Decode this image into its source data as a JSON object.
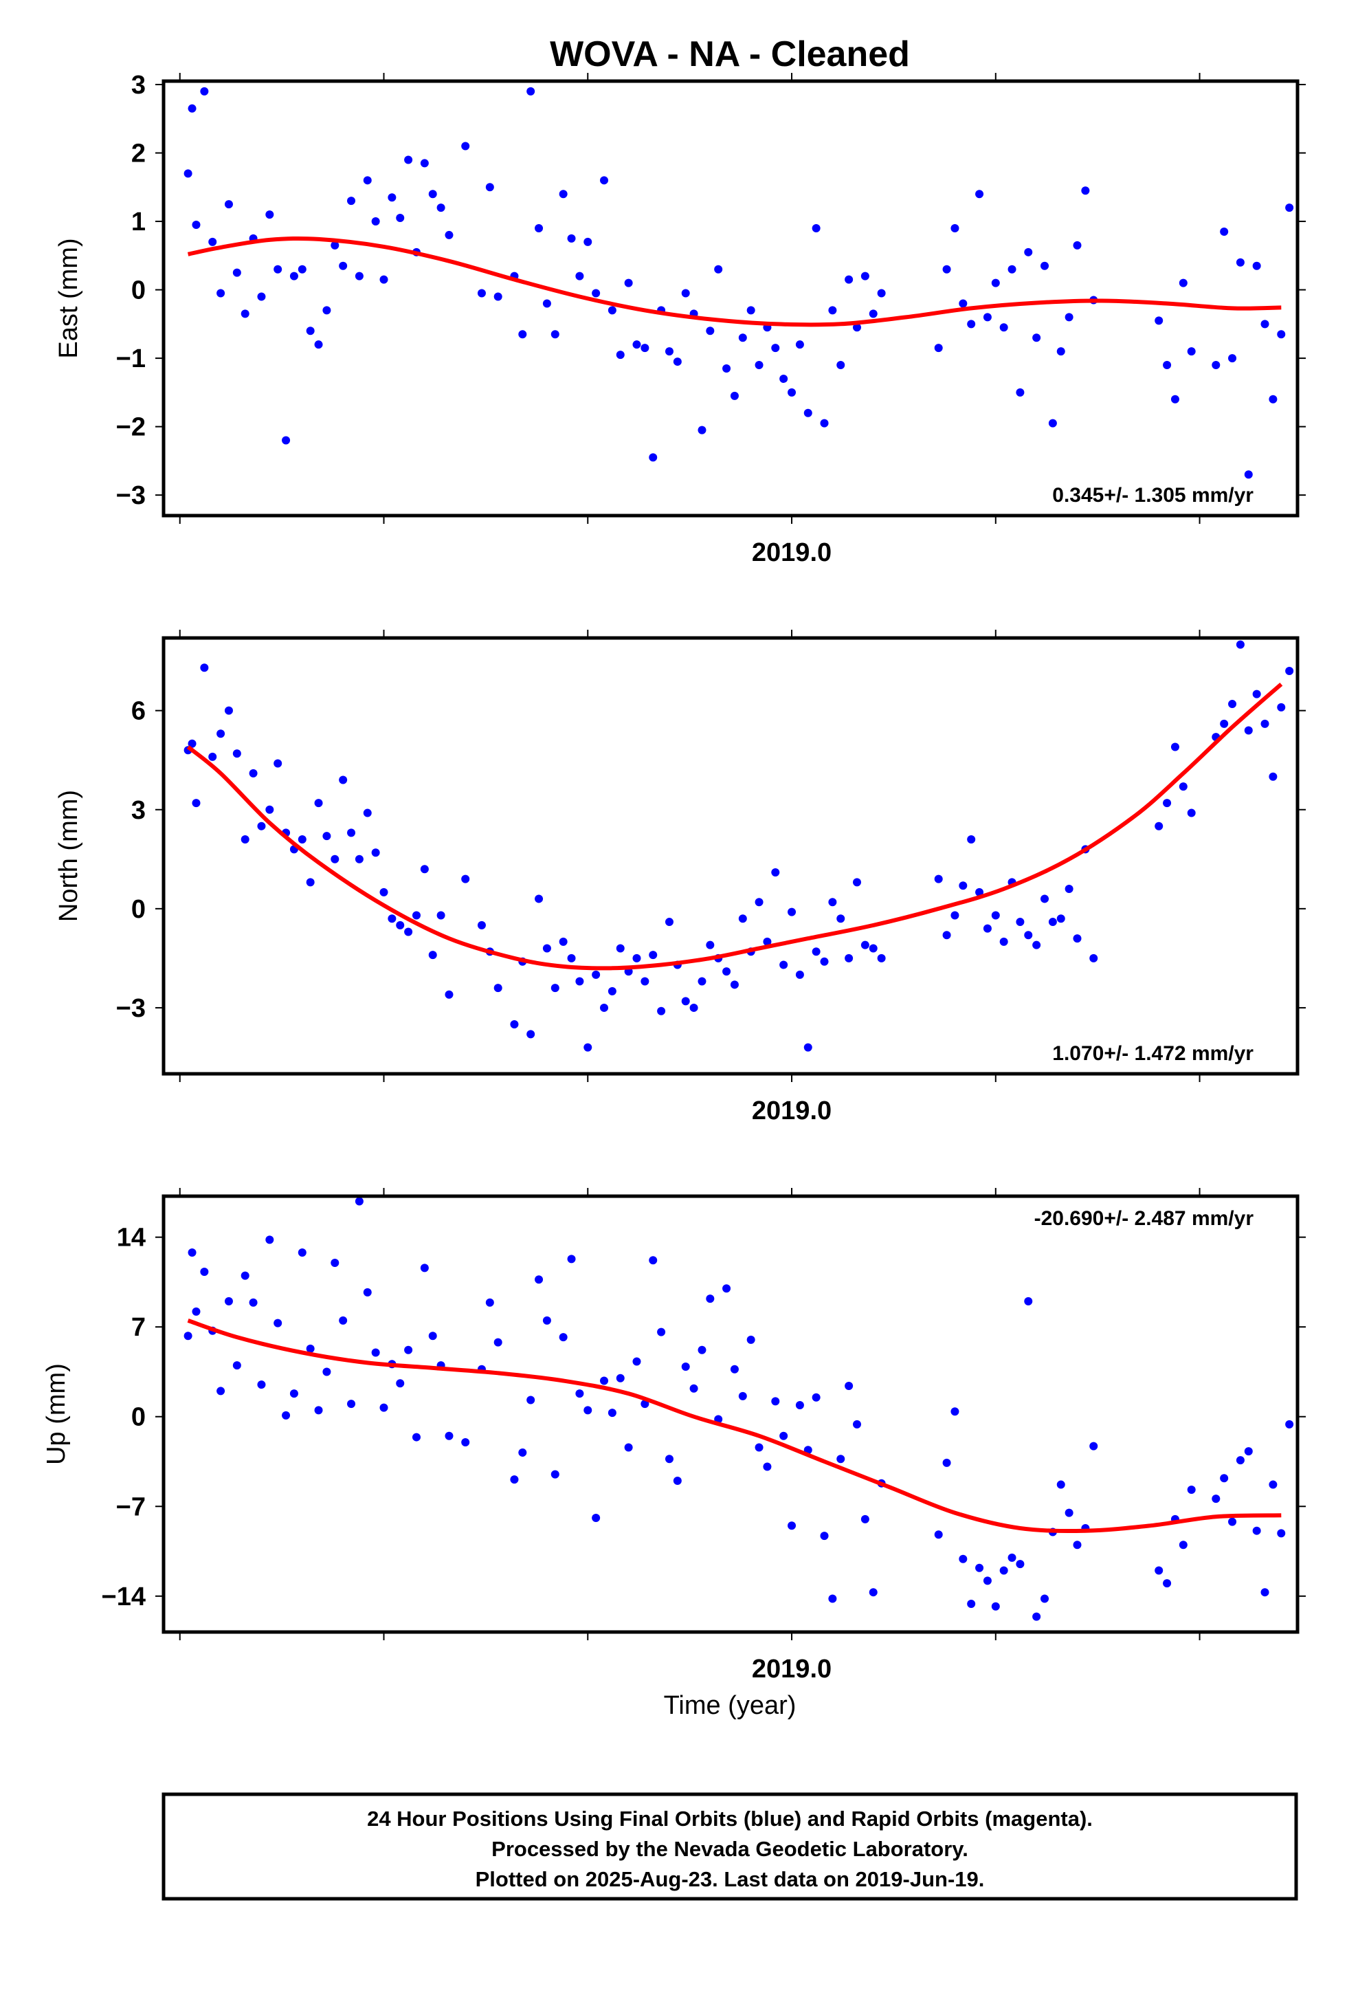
{
  "figure": {
    "title": "WOVA  - NA - Cleaned",
    "x_axis_label": "Time (year)",
    "caption": [
      "24 Hour Positions Using Final Orbits (blue) and Rapid Orbits (magenta).",
      "Processed by the Nevada Geodetic Laboratory.",
      "Plotted on 2025-Aug-23. Last data on 2019-Jun-19."
    ]
  },
  "colors": {
    "points": "#0000ff",
    "fit": "#ff0000",
    "axes": "#000000"
  },
  "chart_data": [
    {
      "type": "scatter",
      "ylabel": "East (mm)",
      "xlabel_tick": "2019.0",
      "rate_label": "0.345+/- 1.305 mm/yr",
      "xlim": [
        2018.23,
        2019.62
      ],
      "ylim": [
        -3.3,
        3.05
      ],
      "yticks": [
        3,
        2,
        1,
        0,
        -1,
        -2,
        -3
      ],
      "ytick_labels": [
        "3",
        "2",
        "1",
        "0",
        "−1",
        "−2",
        "−3"
      ],
      "fit": {
        "x": [
          2018.26,
          2018.3,
          2018.36,
          2018.42,
          2018.5,
          2018.58,
          2018.66,
          2018.74,
          2018.82,
          2018.9,
          2018.98,
          2019.06,
          2019.14,
          2019.22,
          2019.3,
          2019.38,
          2019.46,
          2019.54,
          2019.6
        ],
        "y": [
          0.52,
          0.62,
          0.73,
          0.74,
          0.63,
          0.42,
          0.15,
          -0.1,
          -0.3,
          -0.43,
          -0.5,
          -0.5,
          -0.4,
          -0.27,
          -0.19,
          -0.16,
          -0.2,
          -0.27,
          -0.26
        ]
      },
      "points": {
        "x": [
          2018.26,
          2018.265,
          2018.27,
          2018.28,
          2018.29,
          2018.3,
          2018.31,
          2018.32,
          2018.33,
          2018.34,
          2018.35,
          2018.36,
          2018.37,
          2018.38,
          2018.39,
          2018.4,
          2018.41,
          2018.42,
          2018.43,
          2018.44,
          2018.45,
          2018.46,
          2018.47,
          2018.48,
          2018.49,
          2018.5,
          2018.51,
          2018.52,
          2018.53,
          2018.54,
          2018.55,
          2018.56,
          2018.57,
          2018.58,
          2018.6,
          2018.62,
          2018.63,
          2018.64,
          2018.66,
          2018.67,
          2018.68,
          2018.69,
          2018.7,
          2018.71,
          2018.72,
          2018.73,
          2018.74,
          2018.75,
          2018.76,
          2018.77,
          2018.78,
          2018.79,
          2018.8,
          2018.81,
          2018.82,
          2018.83,
          2018.84,
          2018.85,
          2018.86,
          2018.87,
          2018.88,
          2018.89,
          2018.9,
          2018.91,
          2018.92,
          2018.93,
          2018.94,
          2018.95,
          2018.96,
          2018.97,
          2018.98,
          2018.99,
          2019.0,
          2019.01,
          2019.02,
          2019.03,
          2019.04,
          2019.05,
          2019.06,
          2019.07,
          2019.08,
          2019.09,
          2019.1,
          2019.11,
          2019.18,
          2019.19,
          2019.2,
          2019.21,
          2019.22,
          2019.23,
          2019.24,
          2019.25,
          2019.26,
          2019.27,
          2019.28,
          2019.29,
          2019.3,
          2019.31,
          2019.32,
          2019.33,
          2019.34,
          2019.35,
          2019.36,
          2019.37,
          2019.45,
          2019.46,
          2019.47,
          2019.48,
          2019.49,
          2019.52,
          2019.53,
          2019.54,
          2019.55,
          2019.56,
          2019.57,
          2019.58,
          2019.59,
          2019.6,
          2019.61
        ],
        "y": [
          1.7,
          2.65,
          0.95,
          2.9,
          0.7,
          -0.05,
          1.25,
          0.25,
          -0.35,
          0.75,
          -0.1,
          1.1,
          0.3,
          -2.2,
          0.2,
          0.3,
          -0.6,
          -0.8,
          -0.3,
          0.65,
          0.35,
          1.3,
          0.2,
          1.6,
          1.0,
          0.15,
          1.35,
          1.05,
          1.9,
          0.55,
          1.85,
          1.4,
          1.2,
          0.8,
          2.1,
          -0.05,
          1.5,
          -0.1,
          0.2,
          -0.65,
          2.9,
          0.9,
          -0.2,
          -0.65,
          1.4,
          0.75,
          0.2,
          0.7,
          -0.05,
          1.6,
          -0.3,
          -0.95,
          0.1,
          -0.8,
          -0.85,
          -2.45,
          -0.3,
          -0.9,
          -1.05,
          -0.05,
          -0.35,
          -2.05,
          -0.6,
          0.3,
          -1.15,
          -1.55,
          -0.7,
          -0.3,
          -1.1,
          -0.55,
          -0.85,
          -1.3,
          -1.5,
          -0.8,
          -1.8,
          0.9,
          -1.95,
          -0.3,
          -1.1,
          0.15,
          -0.55,
          0.2,
          -0.35,
          -0.05,
          -0.85,
          0.3,
          0.9,
          -0.2,
          -0.5,
          1.4,
          -0.4,
          0.1,
          -0.55,
          0.3,
          -1.5,
          0.55,
          -0.7,
          0.35,
          -1.95,
          -0.9,
          -0.4,
          0.65,
          1.45,
          -0.15,
          -0.45,
          -1.1,
          -1.6,
          0.1,
          -0.9,
          -1.1,
          0.85,
          -1.0,
          0.4,
          -2.7,
          0.35,
          -0.5,
          -1.6,
          -0.65,
          1.2
        ]
      }
    },
    {
      "type": "scatter",
      "ylabel": "North (mm)",
      "xlabel_tick": "2019.0",
      "rate_label": "1.070+/- 1.472 mm/yr",
      "xlim": [
        2018.23,
        2019.62
      ],
      "ylim": [
        -5.0,
        8.2
      ],
      "yticks": [
        6,
        3,
        0,
        -3
      ],
      "ytick_labels": [
        "6",
        "3",
        "0",
        "−3"
      ],
      "fit": {
        "x": [
          2018.26,
          2018.3,
          2018.36,
          2018.42,
          2018.5,
          2018.58,
          2018.66,
          2018.72,
          2018.78,
          2018.84,
          2018.9,
          2018.96,
          2019.02,
          2019.1,
          2019.18,
          2019.26,
          2019.34,
          2019.42,
          2019.48,
          2019.54,
          2019.6
        ],
        "y": [
          4.9,
          4.1,
          2.6,
          1.4,
          0.1,
          -0.9,
          -1.5,
          -1.75,
          -1.8,
          -1.7,
          -1.5,
          -1.2,
          -0.9,
          -0.5,
          0.0,
          0.6,
          1.5,
          2.8,
          4.1,
          5.5,
          6.8
        ]
      },
      "points": {
        "x": [
          2018.26,
          2018.265,
          2018.27,
          2018.28,
          2018.29,
          2018.3,
          2018.31,
          2018.32,
          2018.33,
          2018.34,
          2018.35,
          2018.36,
          2018.37,
          2018.38,
          2018.39,
          2018.4,
          2018.41,
          2018.42,
          2018.43,
          2018.44,
          2018.45,
          2018.46,
          2018.47,
          2018.48,
          2018.49,
          2018.5,
          2018.51,
          2018.52,
          2018.53,
          2018.54,
          2018.55,
          2018.56,
          2018.57,
          2018.58,
          2018.6,
          2018.62,
          2018.63,
          2018.64,
          2018.66,
          2018.67,
          2018.68,
          2018.69,
          2018.7,
          2018.71,
          2018.72,
          2018.73,
          2018.74,
          2018.75,
          2018.76,
          2018.77,
          2018.78,
          2018.79,
          2018.8,
          2018.81,
          2018.82,
          2018.83,
          2018.84,
          2018.85,
          2018.86,
          2018.87,
          2018.88,
          2018.89,
          2018.9,
          2018.91,
          2018.92,
          2018.93,
          2018.94,
          2018.95,
          2018.96,
          2018.97,
          2018.98,
          2018.99,
          2019.0,
          2019.01,
          2019.02,
          2019.03,
          2019.04,
          2019.05,
          2019.06,
          2019.07,
          2019.08,
          2019.09,
          2019.1,
          2019.11,
          2019.18,
          2019.19,
          2019.2,
          2019.21,
          2019.22,
          2019.23,
          2019.24,
          2019.25,
          2019.26,
          2019.27,
          2019.28,
          2019.29,
          2019.3,
          2019.31,
          2019.32,
          2019.33,
          2019.34,
          2019.35,
          2019.36,
          2019.37,
          2019.45,
          2019.46,
          2019.47,
          2019.48,
          2019.49,
          2019.52,
          2019.53,
          2019.54,
          2019.55,
          2019.56,
          2019.57,
          2019.58,
          2019.59,
          2019.6,
          2019.61
        ],
        "y": [
          4.8,
          5.0,
          3.2,
          7.3,
          4.6,
          5.3,
          6.0,
          4.7,
          2.1,
          4.1,
          2.5,
          3.0,
          4.4,
          2.3,
          1.8,
          2.1,
          0.8,
          3.2,
          2.2,
          1.5,
          3.9,
          2.3,
          1.5,
          2.9,
          1.7,
          0.5,
          -0.3,
          -0.5,
          -0.7,
          -0.2,
          1.2,
          -1.4,
          -0.2,
          -2.6,
          0.9,
          -0.5,
          -1.3,
          -2.4,
          -3.5,
          -1.6,
          -3.8,
          0.3,
          -1.2,
          -2.4,
          -1.0,
          -1.5,
          -2.2,
          -4.2,
          -2.0,
          -3.0,
          -2.5,
          -1.2,
          -1.9,
          -1.5,
          -2.2,
          -1.4,
          -3.1,
          -0.4,
          -1.7,
          -2.8,
          -3.0,
          -2.2,
          -1.1,
          -1.5,
          -1.9,
          -2.3,
          -0.3,
          -1.3,
          0.2,
          -1.0,
          1.1,
          -1.7,
          -0.1,
          -2.0,
          -4.2,
          -1.3,
          -1.6,
          0.2,
          -0.3,
          -1.5,
          0.8,
          -1.1,
          -1.2,
          -1.5,
          0.9,
          -0.8,
          -0.2,
          0.7,
          2.1,
          0.5,
          -0.6,
          -0.2,
          -1.0,
          0.8,
          -0.4,
          -0.8,
          -1.1,
          0.3,
          -0.4,
          -0.3,
          0.6,
          -0.9,
          1.8,
          -1.5,
          2.5,
          3.2,
          4.9,
          3.7,
          2.9,
          5.2,
          5.6,
          6.2,
          8.0,
          5.4,
          6.5,
          5.6,
          4.0,
          6.1,
          7.2
        ]
      }
    },
    {
      "type": "scatter",
      "ylabel": "Up (mm)",
      "xlabel_tick": "2019.0",
      "rate_label": "-20.690+/- 2.487 mm/yr",
      "xlim": [
        2018.23,
        2019.62
      ],
      "ylim": [
        -16.8,
        17.2
      ],
      "yticks": [
        14,
        7,
        0,
        -7,
        -14
      ],
      "ytick_labels": [
        "14",
        "7",
        "0",
        "−7",
        "−14"
      ],
      "fit": {
        "x": [
          2018.26,
          2018.32,
          2018.4,
          2018.48,
          2018.56,
          2018.64,
          2018.72,
          2018.8,
          2018.88,
          2018.96,
          2019.04,
          2019.12,
          2019.2,
          2019.28,
          2019.36,
          2019.44,
          2019.52,
          2019.6
        ],
        "y": [
          7.5,
          6.2,
          5.0,
          4.2,
          3.8,
          3.4,
          2.8,
          1.8,
          0.0,
          -1.5,
          -3.5,
          -5.5,
          -7.5,
          -8.7,
          -8.9,
          -8.5,
          -7.8,
          -7.7
        ]
      },
      "points": {
        "x": [
          2018.26,
          2018.265,
          2018.27,
          2018.28,
          2018.29,
          2018.3,
          2018.31,
          2018.32,
          2018.33,
          2018.34,
          2018.35,
          2018.36,
          2018.37,
          2018.38,
          2018.39,
          2018.4,
          2018.41,
          2018.42,
          2018.43,
          2018.44,
          2018.45,
          2018.46,
          2018.47,
          2018.48,
          2018.49,
          2018.5,
          2018.51,
          2018.52,
          2018.53,
          2018.54,
          2018.55,
          2018.56,
          2018.57,
          2018.58,
          2018.6,
          2018.62,
          2018.63,
          2018.64,
          2018.66,
          2018.67,
          2018.68,
          2018.69,
          2018.7,
          2018.71,
          2018.72,
          2018.73,
          2018.74,
          2018.75,
          2018.76,
          2018.77,
          2018.78,
          2018.79,
          2018.8,
          2018.81,
          2018.82,
          2018.83,
          2018.84,
          2018.85,
          2018.86,
          2018.87,
          2018.88,
          2018.89,
          2018.9,
          2018.91,
          2018.92,
          2018.93,
          2018.94,
          2018.95,
          2018.96,
          2018.97,
          2018.98,
          2018.99,
          2019.0,
          2019.01,
          2019.02,
          2019.03,
          2019.04,
          2019.05,
          2019.06,
          2019.07,
          2019.08,
          2019.09,
          2019.1,
          2019.11,
          2019.18,
          2019.19,
          2019.2,
          2019.21,
          2019.22,
          2019.23,
          2019.24,
          2019.25,
          2019.26,
          2019.27,
          2019.28,
          2019.29,
          2019.3,
          2019.31,
          2019.32,
          2019.33,
          2019.34,
          2019.35,
          2019.36,
          2019.37,
          2019.45,
          2019.46,
          2019.47,
          2019.48,
          2019.49,
          2019.52,
          2019.53,
          2019.54,
          2019.55,
          2019.56,
          2019.57,
          2019.58,
          2019.59,
          2019.6,
          2019.61
        ],
        "y": [
          6.3,
          12.8,
          8.2,
          11.3,
          6.7,
          2.0,
          9.0,
          4.0,
          11.0,
          8.9,
          2.5,
          13.8,
          7.3,
          0.1,
          1.8,
          12.8,
          5.3,
          0.5,
          3.5,
          12.0,
          7.5,
          1.0,
          16.8,
          9.7,
          5.0,
          0.7,
          4.1,
          2.6,
          5.2,
          -1.6,
          11.6,
          6.3,
          4.0,
          -1.5,
          -2.0,
          3.7,
          8.9,
          5.8,
          -4.9,
          -2.8,
          1.3,
          10.7,
          7.5,
          -4.5,
          6.2,
          12.3,
          1.8,
          0.5,
          -7.9,
          2.8,
          0.3,
          3.0,
          -2.4,
          4.3,
          1.0,
          12.2,
          6.6,
          -3.3,
          -5.0,
          3.9,
          2.2,
          5.2,
          9.2,
          -0.2,
          10.0,
          3.7,
          1.6,
          6.0,
          -2.4,
          -3.9,
          1.2,
          -1.5,
          -8.5,
          0.9,
          -2.6,
          1.5,
          -9.3,
          -14.2,
          -3.3,
          2.4,
          -0.6,
          -8.0,
          -13.7,
          -5.2,
          -9.2,
          -3.6,
          0.4,
          -11.1,
          -14.6,
          -11.8,
          -12.8,
          -14.8,
          -12.0,
          -11.0,
          -11.5,
          9.0,
          -15.6,
          -14.2,
          -9.0,
          -5.3,
          -7.5,
          -10.0,
          -8.7,
          -2.3,
          -12.0,
          -13.0,
          -8.0,
          -10.0,
          -5.7,
          -6.4,
          -4.8,
          -8.2,
          -3.4,
          -2.7,
          -8.9,
          -13.7,
          -5.3,
          -9.1,
          -0.6
        ]
      }
    }
  ]
}
